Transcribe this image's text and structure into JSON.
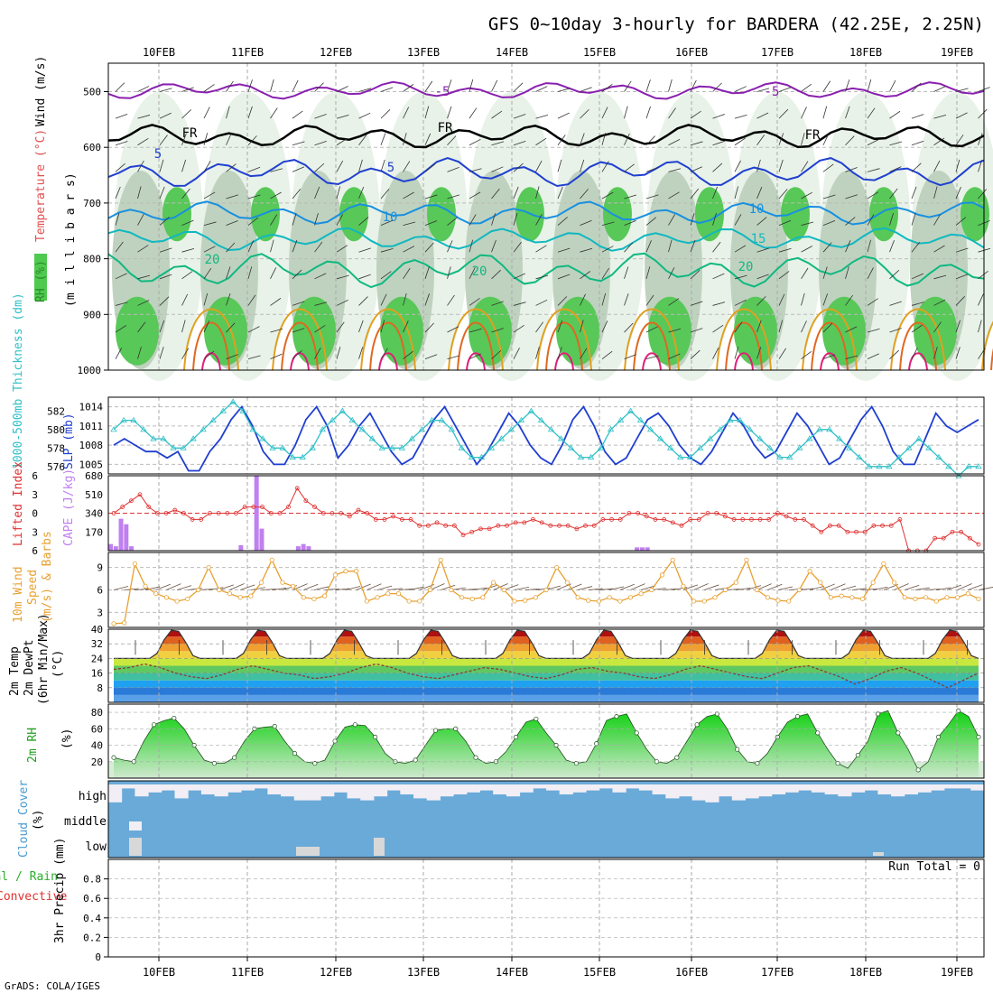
{
  "title": "GFS 0~10day 3-hourly for BARDERA (42.25E, 2.25N)",
  "footer": "GrADS: COLA/IGES",
  "dates": [
    "10FEB",
    "11FEB",
    "12FEB",
    "13FEB",
    "14FEB",
    "15FEB",
    "16FEB",
    "17FEB",
    "18FEB",
    "19FEB"
  ],
  "colors": {
    "rh_green": "#4fca4f",
    "temp_color": "#e05050",
    "slp_color": "#1f3fd0",
    "thick_color": "#30c0c8",
    "cape_color": "#c080f0",
    "li_color": "#e03030",
    "wind_color": "#e8a030",
    "rh2m_color": "#20c020",
    "cloud_blue": "#6aaad8",
    "cloud_light": "#f2eef5"
  },
  "chart_data": [
    {
      "name": "upper-air",
      "type": "heatmap",
      "ylabel_parts": [
        "RH (%)",
        "Temperature (°C)",
        "Wind (m/s)"
      ],
      "ylabel_right": "(m i l l i b a r s)",
      "y_ticks": [
        500,
        600,
        700,
        800,
        900,
        1000
      ],
      "ylim": [
        450,
        1000
      ],
      "contour_labels": [
        "-5",
        "-5",
        "FR",
        "FR",
        "FR",
        "5",
        "5",
        "10",
        "10",
        "15",
        "20",
        "20",
        "20"
      ],
      "isotherms": [
        {
          "label": "-5",
          "color": "#8a20b0",
          "level": 498,
          "amp": 6
        },
        {
          "label": "FR",
          "color": "#000000",
          "level": 580,
          "amp": 8
        },
        {
          "label": "5",
          "color": "#2040d0",
          "level": 645,
          "amp": 10
        },
        {
          "label": "10",
          "color": "#1890e0",
          "level": 718,
          "amp": 8
        },
        {
          "label": "15",
          "color": "#10b8c0",
          "level": 765,
          "amp": 8
        },
        {
          "label": "20",
          "color": "#10b880",
          "level": 820,
          "amp": 12
        }
      ]
    },
    {
      "name": "slp-thickness",
      "type": "line",
      "ylabel_left": "1000-500mb Thickness (dm)",
      "ylabel_right": "SLP (mb)",
      "left_ticks": [
        576,
        578,
        580,
        582
      ],
      "right_ticks": [
        1005,
        1008,
        1011,
        1014
      ],
      "series": [
        {
          "name": "SLP",
          "axis": "right",
          "ylim": [
            1003.5,
            1015.5
          ],
          "values": [
            1008,
            1009,
            1008,
            1007,
            1007,
            1006,
            1007,
            1004,
            1004,
            1007,
            1009,
            1012,
            1014,
            1011,
            1007,
            1005,
            1005,
            1008,
            1012,
            1014,
            1011,
            1006,
            1008,
            1011,
            1013,
            1010,
            1007,
            1005,
            1006,
            1009,
            1012,
            1014,
            1011,
            1008,
            1005,
            1007,
            1010,
            1013,
            1011,
            1008,
            1006,
            1005,
            1008,
            1012,
            1014,
            1011,
            1007,
            1005,
            1006,
            1009,
            1012,
            1013,
            1011,
            1008,
            1006,
            1005,
            1007,
            1010,
            1013,
            1011,
            1008,
            1006,
            1007,
            1010,
            1013,
            1011,
            1008,
            1005,
            1006,
            1009,
            1012,
            1014,
            1011,
            1007,
            1005,
            1005,
            1009,
            1013,
            1011,
            1010,
            1011,
            1012
          ]
        },
        {
          "name": "1000-500mb Thickness",
          "axis": "left",
          "ylim": [
            575.2,
            583.5
          ],
          "values": [
            580,
            581,
            581,
            580,
            579,
            579,
            578,
            578,
            579,
            580,
            581,
            582,
            583,
            582,
            580,
            579,
            578,
            578,
            577,
            577,
            578,
            580,
            581,
            582,
            581,
            580,
            579,
            578,
            578,
            578,
            579,
            580,
            581,
            581,
            580,
            578,
            577,
            577,
            578,
            579,
            580,
            581,
            582,
            581,
            580,
            579,
            578,
            577,
            577,
            578,
            580,
            581,
            582,
            581,
            580,
            579,
            578,
            577,
            577,
            578,
            579,
            580,
            581,
            581,
            580,
            579,
            578,
            577,
            577,
            578,
            579,
            580,
            580,
            579,
            578,
            577,
            576,
            576,
            576,
            577,
            578,
            579,
            578,
            577,
            576,
            575,
            576,
            576
          ]
        }
      ]
    },
    {
      "name": "cape-li",
      "type": "bar",
      "ylabel_left": "Lifted Index",
      "ylabel_right": "CAPE (J/kg)",
      "left_ticks": [
        -6,
        -3,
        0,
        3,
        6
      ],
      "right_ticks": [
        170,
        340,
        510,
        680
      ],
      "series": [
        {
          "name": "CAPE",
          "ylim": [
            0,
            680
          ],
          "values": [
            60,
            40,
            290,
            240,
            40,
            0,
            0,
            0,
            0,
            0,
            0,
            0,
            0,
            0,
            0,
            0,
            0,
            0,
            0,
            0,
            0,
            0,
            0,
            0,
            0,
            50,
            0,
            0,
            680,
            200,
            0,
            0,
            0,
            0,
            0,
            0,
            40,
            60,
            40,
            0,
            0,
            0,
            0,
            0,
            0,
            0,
            0,
            0,
            0,
            0,
            0,
            0,
            0,
            0,
            0,
            0,
            0,
            0,
            0,
            0,
            0,
            0,
            0,
            0,
            0,
            0,
            0,
            0,
            0,
            0,
            0,
            0,
            0,
            0,
            0,
            0,
            0,
            0,
            0,
            0,
            0,
            0,
            0,
            0,
            0,
            0,
            0,
            0,
            0,
            0,
            0,
            0,
            0,
            0,
            0,
            0,
            0,
            0,
            0,
            0,
            0,
            30,
            30,
            30,
            0,
            0,
            0,
            0,
            0,
            0,
            0,
            0,
            0,
            0,
            0,
            0,
            0,
            0,
            0,
            0,
            0,
            0,
            0,
            0,
            0,
            0,
            0,
            0,
            0,
            0,
            0,
            0,
            0,
            0,
            0,
            0,
            0,
            0,
            0,
            0,
            0,
            0,
            0,
            0,
            0,
            0,
            0,
            0,
            0,
            0,
            0,
            0,
            0,
            0,
            0,
            0,
            0,
            0,
            0,
            0,
            0,
            0,
            0,
            0,
            0,
            0,
            0,
            0
          ]
        },
        {
          "name": "Lifted Index",
          "ylim": [
            -6,
            6
          ],
          "values": [
            0,
            -1,
            -2,
            -3,
            -1,
            0,
            0,
            -0.5,
            0,
            1,
            1,
            0,
            0,
            0,
            0,
            -1,
            -1,
            -1,
            0,
            0,
            -1,
            -4,
            -2,
            -1,
            0,
            0,
            0,
            0.5,
            -0.5,
            0,
            1,
            1,
            0.5,
            1,
            1,
            2,
            2,
            1.5,
            2,
            2,
            3.5,
            3,
            2.5,
            2.5,
            2,
            2,
            1.5,
            1.5,
            1,
            1.5,
            2,
            2,
            2,
            2.5,
            2,
            2,
            1,
            1,
            1,
            0,
            0,
            0.5,
            1,
            1,
            1.5,
            2,
            1,
            1,
            0,
            0,
            0.5,
            1,
            1,
            1,
            1,
            1,
            0,
            0.5,
            1,
            1,
            2,
            3,
            2,
            2,
            3,
            3,
            3,
            2,
            2,
            2,
            1,
            6,
            6,
            6,
            4,
            4,
            3,
            3,
            4,
            5
          ]
        }
      ]
    },
    {
      "name": "wind10m",
      "type": "line",
      "ylabel": "10m Wind Speed (m/s) & Barbs",
      "y_ticks": [
        3,
        6,
        9
      ],
      "ylim": [
        1,
        11
      ],
      "values": [
        1.5,
        1.6,
        9.5,
        6.5,
        5.5,
        5,
        4.5,
        4.8,
        6,
        9,
        6,
        5.5,
        5,
        5.2,
        7,
        10,
        7,
        6.5,
        5,
        4.8,
        5.2,
        8,
        8.5,
        8.5,
        4.5,
        5,
        5.5,
        5.5,
        4.5,
        4.5,
        6,
        10,
        6,
        5,
        4.8,
        5,
        7,
        6,
        4.5,
        4.6,
        5,
        6,
        9,
        7,
        5,
        4.6,
        4.5,
        5,
        4.5,
        5,
        5.5,
        6,
        8,
        10,
        6.5,
        4.5,
        4.5,
        5,
        6,
        7,
        10,
        6,
        5,
        4.6,
        4.5,
        6,
        8.5,
        7,
        5,
        5.2,
        5,
        4.8,
        7,
        9.5,
        7,
        5,
        4.8,
        5,
        4.5,
        5,
        5,
        5.5,
        4.8
      ]
    },
    {
      "name": "temp2m",
      "type": "area",
      "ylabel_left": "2m Temp 2m DewPt (6hr Min/Max) (°C)",
      "y_ticks": [
        8,
        16,
        24,
        32,
        40
      ],
      "ylim": [
        0,
        40
      ],
      "days": 10,
      "temp_min": 24,
      "temp_max": 40,
      "dewpoint": [
        18,
        19,
        21,
        19,
        16,
        14,
        13,
        15,
        18,
        20,
        18,
        16,
        15,
        13,
        14,
        16,
        19,
        21,
        19,
        16,
        14,
        13,
        15,
        17,
        19,
        18,
        16,
        14,
        13,
        15,
        18,
        19,
        17,
        16,
        14,
        13,
        15,
        18,
        20,
        18,
        16,
        14,
        13,
        16,
        19,
        20,
        17,
        14,
        10,
        13,
        17,
        19,
        16,
        12,
        8,
        12,
        16
      ]
    },
    {
      "name": "rh2m",
      "type": "area",
      "ylabel": "2m RH (%)",
      "y_ticks": [
        20,
        40,
        60,
        80
      ],
      "ylim": [
        0,
        90
      ],
      "values": [
        25,
        22,
        20,
        45,
        65,
        70,
        73,
        60,
        40,
        22,
        18,
        18,
        25,
        45,
        60,
        62,
        63,
        45,
        30,
        20,
        18,
        22,
        45,
        62,
        65,
        64,
        50,
        30,
        20,
        18,
        22,
        40,
        58,
        60,
        60,
        45,
        25,
        18,
        20,
        32,
        50,
        68,
        72,
        55,
        40,
        22,
        18,
        20,
        42,
        70,
        75,
        78,
        55,
        35,
        20,
        18,
        25,
        45,
        65,
        75,
        78,
        60,
        35,
        20,
        18,
        30,
        50,
        68,
        75,
        78,
        55,
        35,
        18,
        12,
        28,
        45,
        78,
        82,
        55,
        35,
        10,
        20,
        50,
        65,
        82,
        75,
        50
      ]
    },
    {
      "name": "cloud-cover",
      "type": "heatmap",
      "ylabel": "Cloud Cover (%)",
      "levels": [
        "high",
        "middle",
        "low"
      ]
    },
    {
      "name": "precip",
      "type": "bar",
      "ylabel_left": "Total / Rain Convective",
      "ylabel_right": "3hr Precip (mm)",
      "y_ticks": [
        0,
        0.2,
        0.4,
        0.6,
        0.8
      ],
      "ylim": [
        0,
        1
      ],
      "run_total": "Run Total = 0",
      "values": []
    }
  ]
}
